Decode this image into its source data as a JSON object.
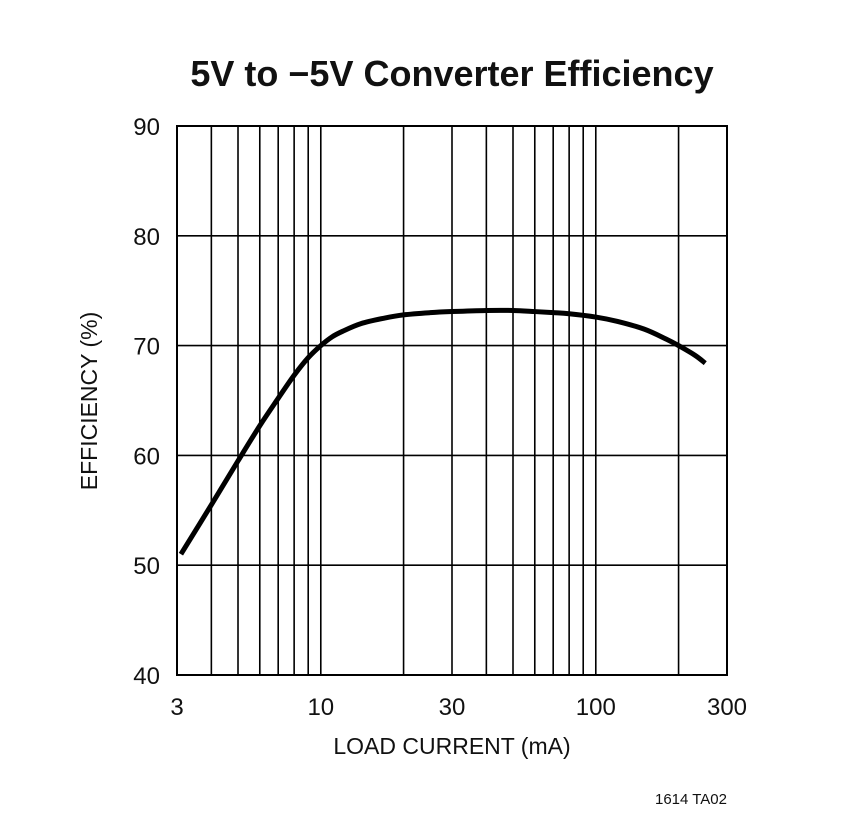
{
  "chart_data": {
    "type": "line",
    "title": "5V to −5V Converter Efficiency",
    "xlabel": "LOAD CURRENT (mA)",
    "ylabel": "EFFICIENCY (%)",
    "x_scale": "log",
    "xlim": [
      3,
      300
    ],
    "ylim": [
      40,
      90
    ],
    "x_ticks": [
      3,
      10,
      30,
      100,
      300
    ],
    "x_tick_labels": [
      "3",
      "10",
      "30",
      "100",
      "300"
    ],
    "y_ticks": [
      40,
      50,
      60,
      70,
      80,
      90
    ],
    "y_tick_labels": [
      "40",
      "50",
      "60",
      "70",
      "80",
      "90"
    ],
    "grid": true,
    "series": [
      {
        "x": [
          3.1,
          4,
          5,
          6,
          7,
          8,
          9,
          10,
          11,
          12,
          14,
          17,
          20,
          25,
          30,
          40,
          50,
          60,
          70,
          80,
          100,
          120,
          150,
          180,
          200,
          230,
          250
        ],
        "y": [
          51,
          55.5,
          59.5,
          62.7,
          65.2,
          67.3,
          68.9,
          70,
          70.8,
          71.3,
          72,
          72.5,
          72.8,
          73.0,
          73.1,
          73.2,
          73.2,
          73.1,
          73.0,
          72.9,
          72.6,
          72.2,
          71.5,
          70.6,
          70.0,
          69.1,
          68.4
        ]
      }
    ],
    "color": "#000000"
  },
  "footnote": "1614 TA02"
}
